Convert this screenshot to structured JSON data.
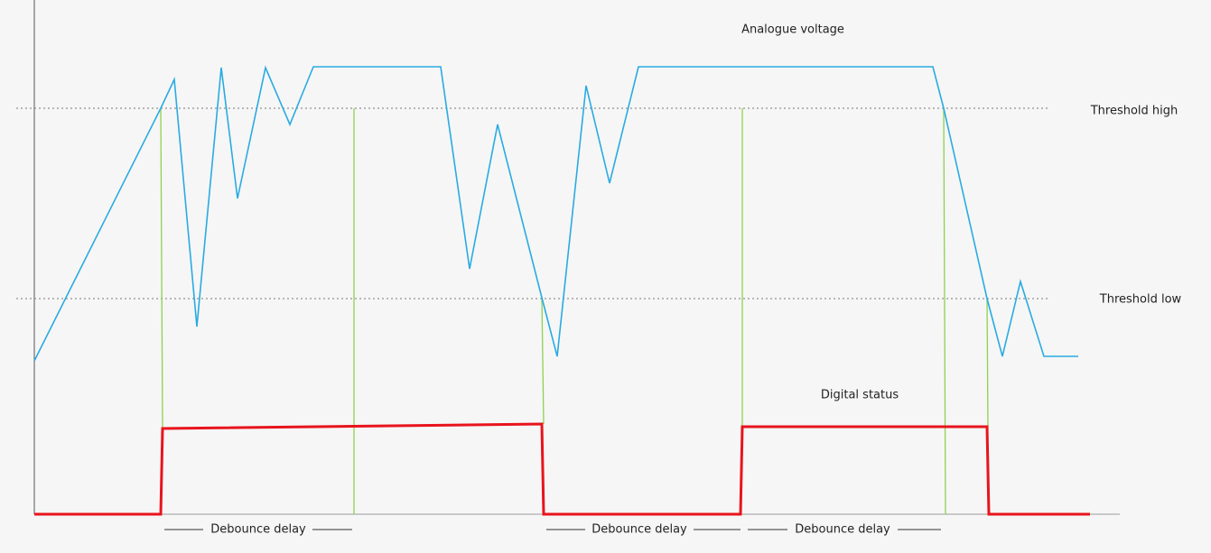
{
  "labels": {
    "analogue": "Analogue voltage",
    "threshold_high": "Threshold high",
    "threshold_low": "Threshold low",
    "digital": "Digital status"
  },
  "debounce": [
    "Debounce delay",
    "Debounce delay",
    "Debounce delay"
  ]
}
